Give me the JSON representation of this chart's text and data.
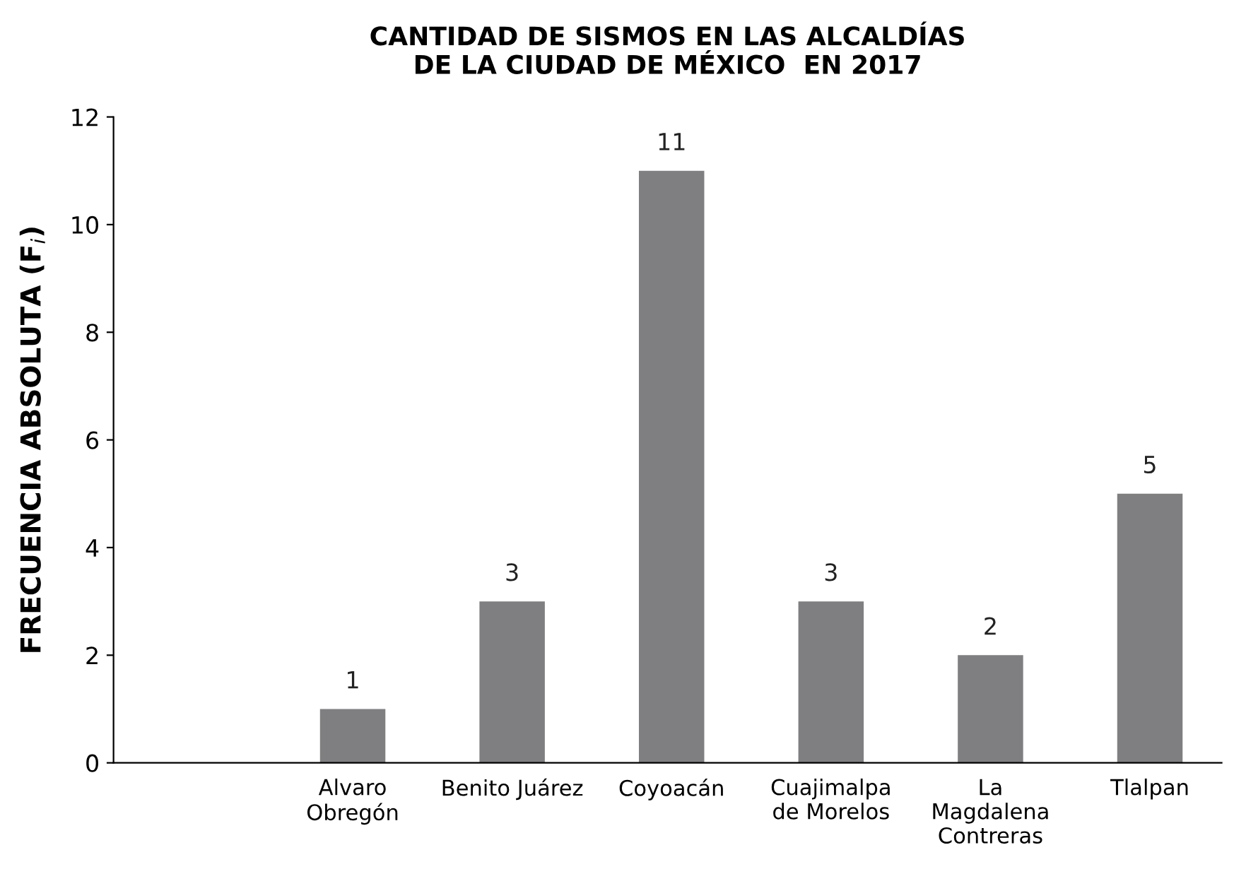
{
  "chart_data": {
    "type": "bar",
    "title": "CANTIDAD DE SISMOS EN LAS ALCALDÍAS\nDE LA CIUDAD DE MÉXICO  EN 2017",
    "ylabel": "FRECUENCIA ABSOLUTA (F$_{i}$)",
    "categories": [
      null,
      "Alvaro\nObregón",
      "Benito Juárez",
      "Coyoacán",
      "Cuajimalpa\nde Morelos",
      "La\nMagdalena\nContreras",
      "Tlalpan"
    ],
    "values": [
      null,
      1,
      3,
      11,
      3,
      2,
      5
    ],
    "color": "#7f7f81",
    "ylim": [
      0,
      12
    ],
    "yticks": [
      0,
      2,
      4,
      6,
      8,
      10,
      12
    ],
    "data_labels": true,
    "grid": false,
    "legend": false
  }
}
